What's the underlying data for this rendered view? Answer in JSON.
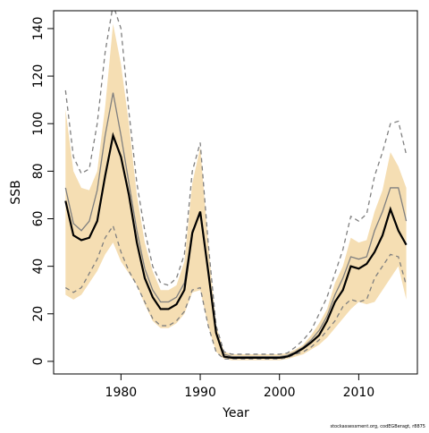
{
  "chart_data": {
    "type": "line",
    "x_label": "Year",
    "y_label": "SSB",
    "footnote": "stockassessment.org, codEGBeragt, r8875",
    "x": [
      1973,
      1974,
      1975,
      1976,
      1977,
      1978,
      1979,
      1980,
      1981,
      1982,
      1983,
      1984,
      1985,
      1986,
      1987,
      1988,
      1989,
      1990,
      1991,
      1992,
      1993,
      1994,
      1995,
      1996,
      1997,
      1998,
      1999,
      2000,
      2001,
      2002,
      2003,
      2004,
      2005,
      2006,
      2007,
      2008,
      2009,
      2010,
      2011,
      2012,
      2013,
      2014,
      2015,
      2016
    ],
    "band": {
      "color": "#f5deb3",
      "lower": [
        28,
        26,
        28,
        33,
        38,
        45,
        50,
        42,
        37,
        32,
        24,
        17,
        14,
        14,
        16,
        20,
        29,
        30,
        15,
        4,
        1,
        0.5,
        0.5,
        0.5,
        0.5,
        0.5,
        0.5,
        0.5,
        1,
        2,
        3,
        5,
        7,
        10,
        14,
        18,
        22,
        25,
        24,
        25,
        30,
        35,
        40,
        26
      ],
      "upper": [
        106,
        80,
        73,
        72,
        80,
        107,
        142,
        125,
        100,
        70,
        50,
        38,
        30,
        30,
        32,
        42,
        75,
        90,
        50,
        15,
        4,
        3,
        3,
        3,
        3,
        3,
        3,
        3,
        3.5,
        5,
        7,
        11,
        16,
        22,
        33,
        40,
        52,
        50,
        51,
        63,
        72,
        88,
        82,
        73
      ]
    },
    "series": [
      {
        "color": "#7f7f7f",
        "dashed": true,
        "values": [
          114,
          86,
          79,
          81,
          100,
          130,
          150,
          140,
          105,
          75,
          55,
          40,
          33,
          32,
          35,
          45,
          80,
          92,
          50,
          15,
          4,
          3,
          3,
          3,
          3,
          3,
          3,
          3,
          3.5,
          6,
          9,
          13,
          20,
          27,
          37,
          47,
          61,
          59,
          62,
          78,
          88,
          100,
          101,
          87
        ]
      },
      {
        "color": "#7f7f7f",
        "dashed": true,
        "values": [
          31,
          29,
          31,
          37,
          43,
          52,
          57,
          46,
          38,
          32,
          25,
          18,
          15,
          15,
          17,
          21,
          30,
          31,
          15,
          4,
          1,
          1,
          1,
          1,
          1,
          1,
          1,
          1,
          1.5,
          3,
          4,
          6,
          9,
          13,
          17,
          23,
          26,
          25,
          26,
          35,
          40,
          45,
          44,
          32
        ]
      },
      {
        "color": "#7f7f7f",
        "dashed": false,
        "values": [
          73,
          58,
          55,
          59,
          72,
          95,
          113,
          95,
          75,
          55,
          39,
          30,
          25,
          25,
          27,
          33,
          55,
          62,
          38,
          12,
          3,
          2,
          2,
          2,
          2,
          2,
          2,
          2,
          2.5,
          4,
          6,
          9,
          13,
          19,
          28,
          35,
          44,
          43,
          44,
          55,
          63,
          73,
          73,
          59
        ]
      },
      {
        "color": "#000000",
        "dashed": false,
        "values": [
          67.5,
          53,
          51,
          52,
          59,
          78,
          95,
          86,
          70,
          50,
          35,
          27,
          22,
          22,
          24,
          30,
          54,
          63,
          38,
          12,
          2,
          1.5,
          1.5,
          1.5,
          1.5,
          1.5,
          1.5,
          1.5,
          2,
          3.5,
          5.5,
          8,
          11,
          17,
          25,
          30,
          40,
          39,
          41,
          46,
          53,
          64,
          55,
          49
        ]
      }
    ],
    "xlim": [
      1971.5,
      2017.4
    ],
    "ylim": [
      -5.3,
      147.5
    ],
    "xticks": [
      1980,
      1990,
      2000,
      2010
    ],
    "yticks": [
      0,
      20,
      40,
      60,
      80,
      100,
      120,
      140
    ],
    "grid": false
  }
}
